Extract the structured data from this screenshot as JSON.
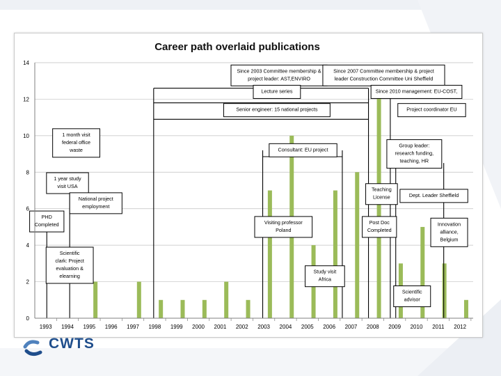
{
  "colors": {
    "bar": "#9bbb59",
    "line": "#000000",
    "grid": "#bfbfbf",
    "logo": "#1f4e8c",
    "logo_accent": "#4f81bd"
  },
  "logo": {
    "text": "CWTS"
  },
  "chart_data": {
    "type": "bar",
    "title": "Career path overlaid publications",
    "xlabel": "",
    "ylabel": "",
    "ylim": [
      0,
      14
    ],
    "yticks": [
      0,
      2,
      4,
      6,
      8,
      10,
      12,
      14
    ],
    "grid": true,
    "categories": [
      "1993",
      "1994",
      "1995",
      "1996",
      "1997",
      "1998",
      "1999",
      "2000",
      "2001",
      "2002",
      "2003",
      "2004",
      "2005",
      "2006",
      "2007",
      "2008",
      "2009",
      "2010",
      "2011",
      "2012"
    ],
    "x_start": 1993,
    "x_end": 2012.6,
    "series": [
      {
        "name": "Publications",
        "points": [
          {
            "x": 1995,
            "y": 2
          },
          {
            "x": 1997,
            "y": 2
          },
          {
            "x": 1998,
            "y": 1
          },
          {
            "x": 1999,
            "y": 1
          },
          {
            "x": 2000,
            "y": 1
          },
          {
            "x": 2001,
            "y": 2
          },
          {
            "x": 2002,
            "y": 1
          },
          {
            "x": 2003,
            "y": 7
          },
          {
            "x": 2004,
            "y": 10
          },
          {
            "x": 2005,
            "y": 4
          },
          {
            "x": 2006,
            "y": 7
          },
          {
            "x": 2007,
            "y": 8
          },
          {
            "x": 2008,
            "y": 13
          },
          {
            "x": 2009,
            "y": 3
          },
          {
            "x": 2010,
            "y": 5
          },
          {
            "x": 2011,
            "y": 3
          },
          {
            "x": 2012,
            "y": 1
          }
        ]
      }
    ],
    "annotations": [
      {
        "id": "phd",
        "lines": [
          "PHD",
          "Completed"
        ],
        "x": 1993.05,
        "y": 5.3
      },
      {
        "id": "us-visit",
        "lines": [
          "1 year study",
          "visit USA"
        ],
        "x": 1994.0,
        "y": 7.4
      },
      {
        "id": "federal-office",
        "lines": [
          "1 month visit",
          "federal office",
          "waste"
        ],
        "x": 1994.4,
        "y": 9.6
      },
      {
        "id": "scientific-clark",
        "lines": [
          "Scientific",
          "clark: Project",
          "evaluation &",
          "elearning"
        ],
        "x": 1994.1,
        "y": 2.9
      },
      {
        "id": "national-project",
        "lines": [
          "National project",
          "employment"
        ],
        "x": 1995.3,
        "y": 6.3
      },
      {
        "id": "committee-2003",
        "lines": [
          "Since 2003 Committee membership &",
          "project leader: AST,ENVIRO"
        ],
        "x": 2003.7,
        "y": 13.3
      },
      {
        "id": "committee-2007",
        "lines": [
          "Since 2007 Committee membership & project",
          "leader Construction Committee Uni Sheffield"
        ],
        "x": 2008.5,
        "y": 13.3
      },
      {
        "id": "lecture-series",
        "lines": [
          "Lecture series"
        ],
        "x": 2003.6,
        "y": 12.4
      },
      {
        "id": "management-2010",
        "lines": [
          "Since 2010 management: EU-COST,"
        ],
        "x": 2010.0,
        "y": 12.4
      },
      {
        "id": "senior-engineer",
        "lines": [
          "Senior engineer: 15 national projects"
        ],
        "x": 2003.6,
        "y": 11.4
      },
      {
        "id": "project-coordinator",
        "lines": [
          "Project coordinator EU"
        ],
        "x": 2010.7,
        "y": 11.4
      },
      {
        "id": "consultant",
        "lines": [
          "Consultant: EU project"
        ],
        "x": 2004.8,
        "y": 9.2
      },
      {
        "id": "group-leader",
        "lines": [
          "Group leader:",
          "research funding,",
          "teaching, HR"
        ],
        "x": 2009.9,
        "y": 9.0
      },
      {
        "id": "teaching-license",
        "lines": [
          "Teaching",
          "License"
        ],
        "x": 2008.4,
        "y": 6.8
      },
      {
        "id": "dept-leader",
        "lines": [
          "Dept. Leader Sheffield"
        ],
        "x": 2010.8,
        "y": 6.7
      },
      {
        "id": "visiting-professor",
        "lines": [
          "Visiting professor",
          "Poland"
        ],
        "x": 2003.9,
        "y": 5.0
      },
      {
        "id": "post-doc",
        "lines": [
          "Post Doc",
          "Completed"
        ],
        "x": 2008.3,
        "y": 5.0
      },
      {
        "id": "innovation-alliance",
        "lines": [
          "Innovation",
          "alliance,",
          "Belgium"
        ],
        "x": 2011.5,
        "y": 4.7
      },
      {
        "id": "study-visit",
        "lines": [
          "Study visit",
          "Africa"
        ],
        "x": 2005.8,
        "y": 2.3
      },
      {
        "id": "scientific-advisor",
        "lines": [
          "Scientific",
          "advisor"
        ],
        "x": 2009.8,
        "y": 1.2
      }
    ]
  }
}
